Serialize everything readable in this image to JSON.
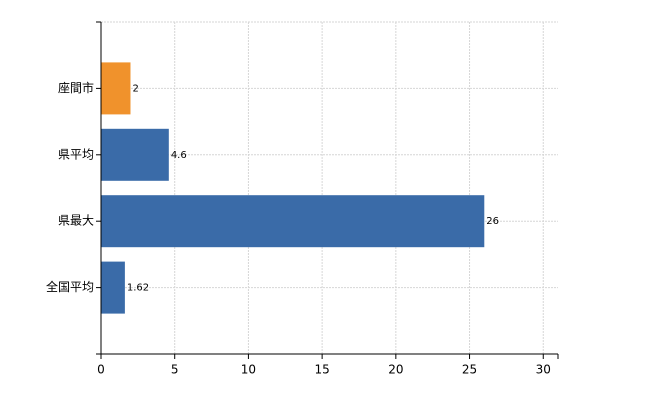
{
  "chart_data": {
    "type": "barh",
    "categories": [
      "座間市",
      "県平均",
      "県最大",
      "全国平均"
    ],
    "values": [
      2,
      4.6,
      26,
      1.62
    ],
    "colors": [
      "#f0922c",
      "#3a6ba8",
      "#3a6ba8",
      "#3a6ba8"
    ],
    "xlim": [
      0,
      31
    ],
    "xticks": [
      0,
      5,
      10,
      15,
      20,
      25,
      30
    ],
    "grid": true
  }
}
